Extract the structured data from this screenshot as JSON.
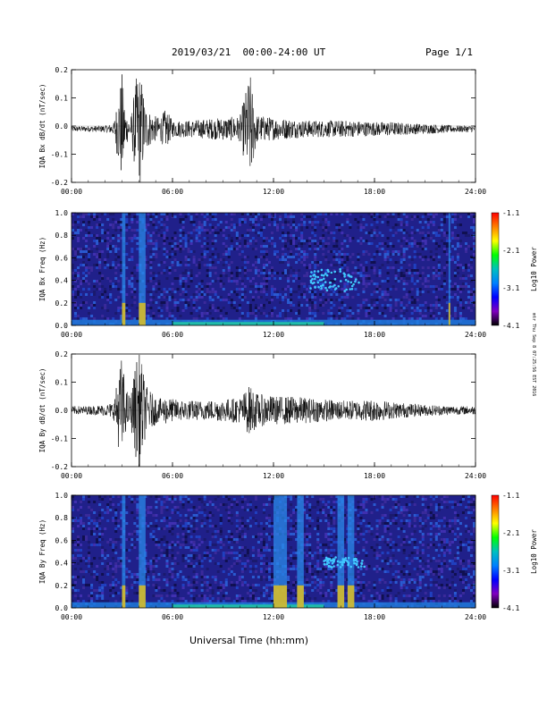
{
  "header": {
    "title": "2019/03/21  00:00-24:00 UT",
    "page": "Page 1/1"
  },
  "xlabel": "Universal Time (hh:mm)",
  "side_stamp": "mtr Thu Sep 8 07:25:56 EST 2016",
  "colorbar": {
    "label": "Log10 Power",
    "ticks": [
      "-1.1",
      "-2.1",
      "-3.1",
      "-4.1"
    ],
    "stops": [
      "#ff0000",
      "#ff8000",
      "#ffff00",
      "#00ff00",
      "#00c0c0",
      "#0080ff",
      "#0000ff",
      "#8000c0",
      "#000000"
    ]
  },
  "chart_data": [
    {
      "type": "line",
      "ylabel": "IQA Bx dB/dt (nT/sec)",
      "xlabels": [
        "00:00",
        "06:00",
        "12:00",
        "18:00",
        "24:00"
      ],
      "xlim": [
        0,
        24
      ],
      "ylim": [
        -0.2,
        0.2
      ],
      "yticks": [
        "0.2",
        "0.1",
        "0.0",
        "-0.1",
        "-0.2"
      ],
      "series": [
        {
          "x": [
            0,
            1,
            2,
            2.5,
            3,
            3.2,
            3.5,
            3.9,
            4.1,
            4.4,
            4.8,
            5.2,
            5.6,
            6,
            7,
            8,
            9,
            10,
            10.6,
            11,
            12,
            13,
            14,
            15,
            16,
            17,
            18,
            19,
            20,
            21,
            22,
            23,
            24
          ],
          "amplitude": [
            0.01,
            0.01,
            0.012,
            0.02,
            0.2,
            0.06,
            0.03,
            0.2,
            0.2,
            0.08,
            0.05,
            0.04,
            0.07,
            0.03,
            0.03,
            0.035,
            0.04,
            0.045,
            0.2,
            0.05,
            0.04,
            0.035,
            0.03,
            0.03,
            0.03,
            0.028,
            0.025,
            0.025,
            0.02,
            0.018,
            0.015,
            0.012,
            0.012
          ],
          "offset": -0.01
        }
      ]
    },
    {
      "type": "heatmap",
      "ylabel": "IQA Bx Freq (Hz)",
      "xlabels": [
        "00:00",
        "06:00",
        "12:00",
        "18:00",
        "24:00"
      ],
      "xlim": [
        0,
        24
      ],
      "ylim": [
        0,
        1
      ],
      "yticks": [
        "1.0",
        "0.8",
        "0.6",
        "0.4",
        "0.2",
        "0.0"
      ],
      "bursts": [
        [
          3.0,
          3.2
        ],
        [
          4.0,
          4.4
        ],
        [
          22.4,
          22.5
        ]
      ],
      "features": [
        {
          "t0": 14.2,
          "t1": 17.2,
          "f0": 0.3,
          "f1": 0.5
        }
      ]
    },
    {
      "type": "line",
      "ylabel": "IQA By dB/dt (nT/sec)",
      "xlabels": [
        "00:00",
        "06:00",
        "12:00",
        "18:00",
        "24:00"
      ],
      "xlim": [
        0,
        24
      ],
      "ylim": [
        -0.2,
        0.2
      ],
      "yticks": [
        "0.2",
        "0.1",
        "0.0",
        "-0.1",
        "-0.2"
      ],
      "series": [
        {
          "x": [
            0,
            1,
            2,
            2.5,
            3,
            3.2,
            3.5,
            3.9,
            4.1,
            4.4,
            4.8,
            5.2,
            5.6,
            6,
            7,
            8,
            9,
            10,
            10.6,
            11,
            12,
            13,
            14,
            15,
            16,
            17,
            18,
            19,
            20,
            21,
            22,
            23,
            24
          ],
          "amplitude": [
            0.015,
            0.015,
            0.02,
            0.03,
            0.2,
            0.08,
            0.05,
            0.2,
            0.2,
            0.09,
            0.06,
            0.04,
            0.05,
            0.04,
            0.035,
            0.035,
            0.04,
            0.045,
            0.09,
            0.06,
            0.05,
            0.05,
            0.045,
            0.04,
            0.035,
            0.035,
            0.04,
            0.03,
            0.025,
            0.02,
            0.018,
            0.015,
            0.015
          ],
          "offset": 0.0
        }
      ]
    },
    {
      "type": "heatmap",
      "ylabel": "IQA By Freq (Hz)",
      "xlabels": [
        "00:00",
        "06:00",
        "12:00",
        "18:00",
        "24:00"
      ],
      "xlim": [
        0,
        24
      ],
      "ylim": [
        0,
        1
      ],
      "yticks": [
        "1.0",
        "0.8",
        "0.6",
        "0.4",
        "0.2",
        "0.0"
      ],
      "bursts": [
        [
          3.0,
          3.2
        ],
        [
          4.0,
          4.4
        ],
        [
          12.0,
          12.8
        ],
        [
          13.4,
          13.8
        ],
        [
          15.8,
          16.2
        ],
        [
          16.4,
          16.8
        ]
      ],
      "features": [
        {
          "t0": 15.0,
          "t1": 17.4,
          "f0": 0.35,
          "f1": 0.45
        }
      ]
    }
  ]
}
